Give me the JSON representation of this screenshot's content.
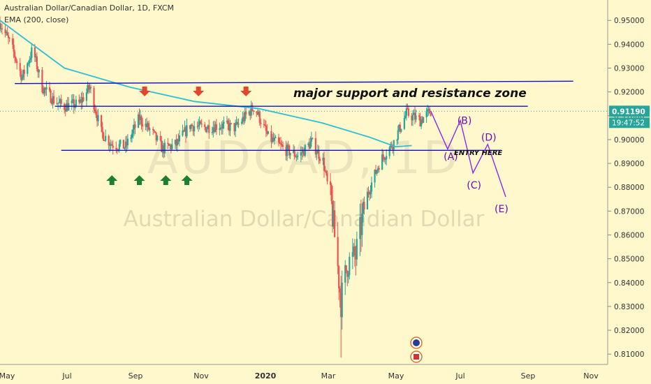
{
  "header": {
    "symbol_line": "Australian Dollar/Canadian Dollar, 1D, FXCM",
    "indicator_line": "EMA (200, close)"
  },
  "watermark": {
    "ticker": "AUDCAD, 1D",
    "name": "Australian Dollar/Canadian Dollar"
  },
  "annotations": {
    "zone_label": "major support and resistance  zone",
    "entry_label": "ENTRY HERE",
    "wave_labels": [
      "(A)",
      "(B)",
      "(C)",
      "(D)",
      "(E)"
    ]
  },
  "price_axis": {
    "current_price": "0.91190",
    "countdown": "19:47:52"
  },
  "colors": {
    "background": "#fff8cc",
    "up_candle": "#26a69a",
    "down_candle": "#ef5350",
    "ema": "#2fbfd5",
    "levels": "#1010c8",
    "projection": "#8a2be2",
    "wave_text": "#6a0dad",
    "price_tag": "#26a69a",
    "arrow_up": "#1e7e34",
    "arrow_down": "#e0482e"
  },
  "icons": [
    "australia-flag-icon",
    "canada-flag-icon"
  ],
  "chart_data": {
    "type": "candlestick",
    "x_tick_labels": [
      "May",
      "Jul",
      "Sep",
      "Nov",
      "2020",
      "Mar",
      "May",
      "Jul",
      "Sep",
      "Nov"
    ],
    "y_tick_labels": [
      "0.95000",
      "0.94000",
      "0.93000",
      "0.92000",
      "0.91000",
      "0.90000",
      "0.89000",
      "0.88000",
      "0.87000",
      "0.86000",
      "0.85000",
      "0.84000",
      "0.83000",
      "0.82000",
      "0.81000"
    ],
    "ylim": [
      0.808,
      0.953
    ],
    "x_date_range": [
      "2019-05-01",
      "2020-11-20"
    ],
    "price_path": [
      [
        "2019-05-01",
        0.949
      ],
      [
        "2019-05-12",
        0.939
      ],
      [
        "2019-05-22",
        0.926
      ],
      [
        "2019-06-01",
        0.938
      ],
      [
        "2019-06-10",
        0.922
      ],
      [
        "2019-06-22",
        0.916
      ],
      [
        "2019-07-01",
        0.914
      ],
      [
        "2019-07-15",
        0.915
      ],
      [
        "2019-07-25",
        0.922
      ],
      [
        "2019-08-05",
        0.903
      ],
      [
        "2019-08-15",
        0.898
      ],
      [
        "2019-08-28",
        0.897
      ],
      [
        "2019-09-10",
        0.909
      ],
      [
        "2019-09-22",
        0.903
      ],
      [
        "2019-10-02",
        0.896
      ],
      [
        "2019-10-15",
        0.898
      ],
      [
        "2019-10-28",
        0.906
      ],
      [
        "2019-11-10",
        0.905
      ],
      [
        "2019-11-25",
        0.906
      ],
      [
        "2019-12-10",
        0.905
      ],
      [
        "2019-12-28",
        0.914
      ],
      [
        "2020-01-10",
        0.901
      ],
      [
        "2020-01-25",
        0.896
      ],
      [
        "2020-02-08",
        0.893
      ],
      [
        "2020-02-20",
        0.899
      ],
      [
        "2020-03-02",
        0.891
      ],
      [
        "2020-03-10",
        0.872
      ],
      [
        "2020-03-15",
        0.851
      ],
      [
        "2020-03-19",
        0.832
      ],
      [
        "2020-03-25",
        0.848
      ],
      [
        "2020-04-02",
        0.851
      ],
      [
        "2020-04-12",
        0.876
      ],
      [
        "2020-04-25",
        0.891
      ],
      [
        "2020-05-08",
        0.899
      ],
      [
        "2020-05-20",
        0.911
      ],
      [
        "2020-06-02",
        0.908
      ],
      [
        "2020-06-12",
        0.912
      ]
    ],
    "ema_200": [
      [
        "2019-05-01",
        0.95
      ],
      [
        "2019-07-01",
        0.93
      ],
      [
        "2019-09-01",
        0.922
      ],
      [
        "2019-11-01",
        0.916
      ],
      [
        "2020-01-01",
        0.913
      ],
      [
        "2020-03-01",
        0.907
      ],
      [
        "2020-04-15",
        0.901
      ],
      [
        "2020-05-10",
        0.897
      ],
      [
        "2020-05-25",
        0.8975
      ]
    ],
    "resistance_lines": [
      {
        "from": [
          "2019-05-15",
          0.9235
        ],
        "to": [
          "2020-10-25",
          0.9245
        ]
      },
      {
        "from": [
          "2019-06-22",
          0.914
        ],
        "to": [
          "2020-09-12",
          0.914
        ]
      }
    ],
    "support_line": {
      "from": [
        "2019-06-28",
        0.8955
      ],
      "to": [
        "2020-08-18",
        0.8955
      ]
    },
    "projection_path": [
      [
        "2020-06-12",
        0.912
      ],
      [
        "2020-06-28",
        0.896
      ],
      [
        "2020-07-10",
        0.908
      ],
      [
        "2020-07-22",
        0.886
      ],
      [
        "2020-08-05",
        0.898
      ],
      [
        "2020-08-22",
        0.876
      ]
    ],
    "wave_label_positions": [
      [
        "2020-07-01",
        0.8915
      ],
      [
        "2020-07-14",
        0.9065
      ],
      [
        "2020-07-23",
        0.8795
      ],
      [
        "2020-08-06",
        0.8995
      ],
      [
        "2020-08-18",
        0.8695
      ]
    ],
    "support_arrows_up": [
      "2019-08-15",
      "2019-09-10",
      "2019-10-05",
      "2019-10-25"
    ],
    "resistance_arrows_down": [
      "2019-09-15",
      "2019-11-05",
      "2019-12-20"
    ],
    "price_tag_value": 0.9119
  }
}
